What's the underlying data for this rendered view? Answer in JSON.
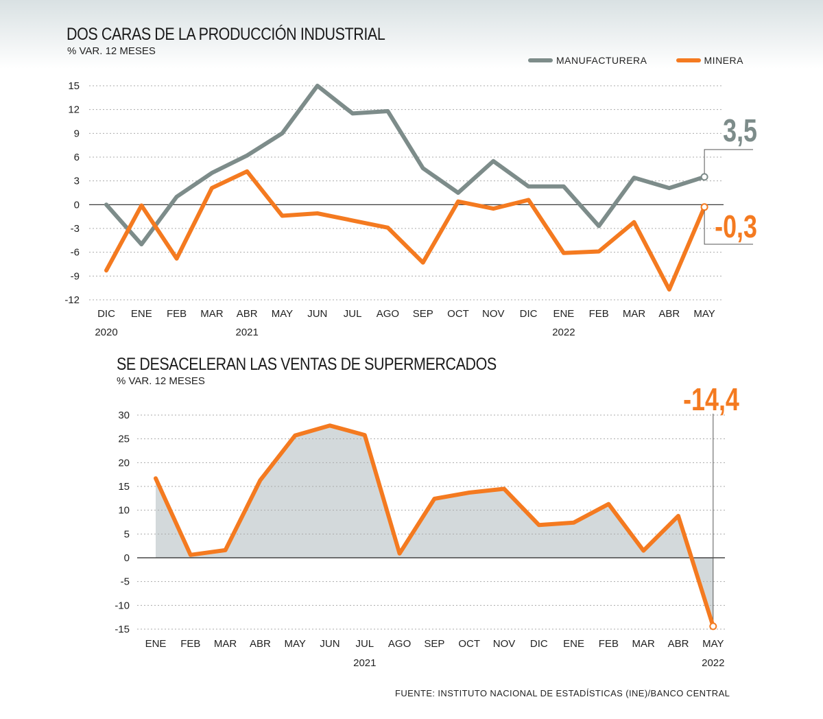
{
  "colors": {
    "manufacturera": "#7d8c8a",
    "minera": "#f47a20",
    "area": "#d3d9db",
    "grid": "#aaaaaa"
  },
  "chart1": {
    "title": "DOS CARAS DE LA PRODUCCIÓN INDUSTRIAL",
    "subtitle": "% VAR. 12 MESES",
    "legend": {
      "manufacturera": "MANUFACTURERA",
      "minera": "MINERA"
    },
    "callouts": {
      "manufacturera": "3,5",
      "minera": "-0,3"
    },
    "years": [
      {
        "label": "2020",
        "index": 0
      },
      {
        "label": "2021",
        "index": 4
      },
      {
        "label": "2022",
        "index": 13
      }
    ]
  },
  "chart2": {
    "title": "SE DESACELERAN LAS VENTAS DE SUPERMERCADOS",
    "subtitle": "% VAR. 12 MESES",
    "callout": "-14,4",
    "years": [
      {
        "label": "2021",
        "index": 6
      },
      {
        "label": "2022",
        "index": 16
      }
    ]
  },
  "source": "FUENTE: INSTITUTO NACIONAL DE ESTADÍSTICAS (INE)/BANCO CENTRAL",
  "chart_data": [
    {
      "type": "line",
      "title": "DOS CARAS DE LA PRODUCCIÓN INDUSTRIAL",
      "ylabel": "% VAR. 12 MESES",
      "categories": [
        "DIC",
        "ENE",
        "FEB",
        "MAR",
        "ABR",
        "MAY",
        "JUN",
        "JUL",
        "AGO",
        "SEP",
        "OCT",
        "NOV",
        "DIC",
        "ENE",
        "FEB",
        "MAR",
        "ABR",
        "MAY"
      ],
      "yticks": [
        15,
        12,
        9,
        6,
        3,
        0,
        -3,
        -6,
        -9,
        -12
      ],
      "ylim": [
        -12,
        15
      ],
      "grid": true,
      "legend": "top-right",
      "series": [
        {
          "name": "MANUFACTURERA",
          "values": [
            0,
            -5,
            1,
            4,
            6.2,
            9,
            15,
            11.5,
            11.8,
            4.6,
            1.5,
            5.5,
            2.3,
            2.3,
            -2.7,
            3.4,
            2.1,
            3.5
          ]
        },
        {
          "name": "MINERA",
          "values": [
            -8.3,
            -0.1,
            -6.8,
            2.1,
            4.2,
            -1.4,
            -1.1,
            -2,
            -2.9,
            -7.3,
            0.4,
            -0.5,
            0.6,
            -6.1,
            -5.9,
            -2.2,
            -10.7,
            -0.3
          ]
        }
      ]
    },
    {
      "type": "area",
      "title": "SE DESACELERAN LAS VENTAS DE SUPERMERCADOS",
      "ylabel": "% VAR. 12 MESES",
      "categories": [
        "ENE",
        "FEB",
        "MAR",
        "ABR",
        "MAY",
        "JUN",
        "JUL",
        "AGO",
        "SEP",
        "OCT",
        "NOV",
        "DIC",
        "ENE",
        "FEB",
        "MAR",
        "ABR",
        "MAY"
      ],
      "yticks": [
        30,
        25,
        20,
        15,
        10,
        5,
        0,
        -5,
        -10,
        -15
      ],
      "ylim": [
        -15,
        30
      ],
      "grid": true,
      "values": [
        16.7,
        0.6,
        1.6,
        16.3,
        25.7,
        27.8,
        25.8,
        0.9,
        12.4,
        13.7,
        14.5,
        6.9,
        7.4,
        11.3,
        1.5,
        8.8,
        -14.4
      ]
    }
  ]
}
